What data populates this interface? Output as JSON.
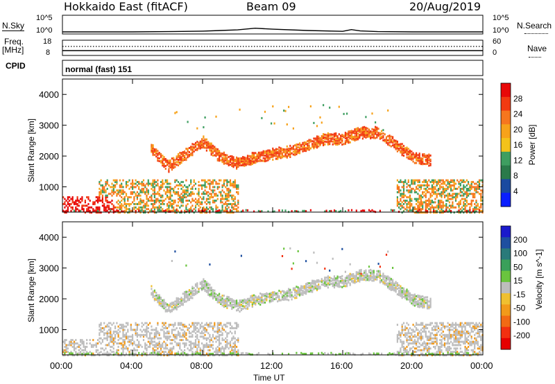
{
  "header": {
    "station": "Hokkaido East (fitACF)",
    "beam": "Beam 09",
    "date": "20/Aug/2019"
  },
  "top_strip": {
    "nsky_label": "N.Sky",
    "nsky_tick_top": "10^5",
    "nsky_tick_bottom": "10^0",
    "nsearch_label": "N.Search",
    "nsearch_tick_top": "10^5",
    "nsearch_tick_bottom": "10^0",
    "freq_label": "Freq.",
    "freq_unit": "[MHz]",
    "freq_tick_top": "18",
    "freq_tick_bottom": "8",
    "nave_label": "Nave",
    "nave_tick_top": "60",
    "nave_tick_bottom": "0",
    "cpid_label": "CPID",
    "cpid_value": "normal (fast) 151"
  },
  "colors": {
    "power_scale": [
      "#0a1eff",
      "#1a4aa0",
      "#2a7a4a",
      "#3e9e60",
      "#f3c21a",
      "#f7a21a",
      "#f6761e",
      "#f23a12",
      "#e80808"
    ],
    "velocity_scale": [
      "#e60000",
      "#f23010",
      "#f26a14",
      "#f29a1a",
      "#f0c030",
      "#bdbdbd",
      "#6ac43e",
      "#3aa05a",
      "#2a7a7a",
      "#1e4fa0",
      "#1a1acc"
    ]
  },
  "chart_data": [
    {
      "type": "line",
      "title": "N.Sky",
      "xlabel": "Time UT",
      "ylabel": "N.Sky",
      "ylim_labels": [
        "10^0",
        "10^5"
      ],
      "x": [
        "00:00",
        "02:00",
        "04:00",
        "06:00",
        "08:00",
        "09:00",
        "10:00",
        "11:00",
        "12:00",
        "14:00",
        "16:00",
        "16:30",
        "17:00",
        "18:00",
        "20:00",
        "22:00",
        "24:00"
      ],
      "series": [
        {
          "values": [
            1,
            1,
            1,
            1.1,
            1.3,
            1.6,
            2.0,
            3.5,
            2.5,
            1.6,
            1.2,
            2.2,
            1.4,
            1.1,
            1.0,
            1.0,
            1.0
          ]
        }
      ]
    },
    {
      "type": "heatmap",
      "title": "",
      "xlabel": "Time UT",
      "ylabel": "Slant Range [km]",
      "xlim": [
        "00:00",
        "24:00"
      ],
      "ylim": [
        180,
        4500
      ],
      "xticks": [
        "00:00",
        "04:00",
        "08:00",
        "12:00",
        "16:00",
        "20:00",
        "00:00"
      ],
      "yticks": [
        1000,
        2000,
        3000,
        4000
      ],
      "colorbar": {
        "label": "Power [dB]",
        "ticks": [
          4,
          8,
          12,
          16,
          20,
          24,
          28
        ]
      },
      "main_echo_band_range_km": [
        {
          "time": "05:00",
          "range": 2300
        },
        {
          "time": "06:00",
          "range": 1700
        },
        {
          "time": "07:00",
          "range": 2100
        },
        {
          "time": "08:00",
          "range": 2500
        },
        {
          "time": "09:00",
          "range": 2000
        },
        {
          "time": "10:00",
          "range": 1800
        },
        {
          "time": "11:00",
          "range": 2000
        },
        {
          "time": "12:00",
          "range": 2100
        },
        {
          "time": "13:00",
          "range": 2200
        },
        {
          "time": "14:00",
          "range": 2400
        },
        {
          "time": "15:00",
          "range": 2600
        },
        {
          "time": "16:00",
          "range": 2600
        },
        {
          "time": "17:00",
          "range": 2800
        },
        {
          "time": "18:00",
          "range": 2800
        },
        {
          "time": "19:00",
          "range": 2400
        },
        {
          "time": "20:00",
          "range": 2000
        },
        {
          "time": "21:00",
          "range": 1900
        }
      ]
    },
    {
      "type": "heatmap",
      "title": "",
      "xlabel": "Time UT",
      "ylabel": "Slant Range [km]",
      "xlim": [
        "00:00",
        "24:00"
      ],
      "ylim": [
        180,
        4500
      ],
      "xticks": [
        "00:00",
        "04:00",
        "08:00",
        "12:00",
        "16:00",
        "20:00",
        "00:00"
      ],
      "yticks": [
        1000,
        2000,
        3000,
        4000
      ],
      "colorbar": {
        "label": "Velocity [m s^-1]",
        "ticks": [
          -200,
          -100,
          -50,
          -15,
          15,
          50,
          100,
          200
        ]
      }
    }
  ]
}
